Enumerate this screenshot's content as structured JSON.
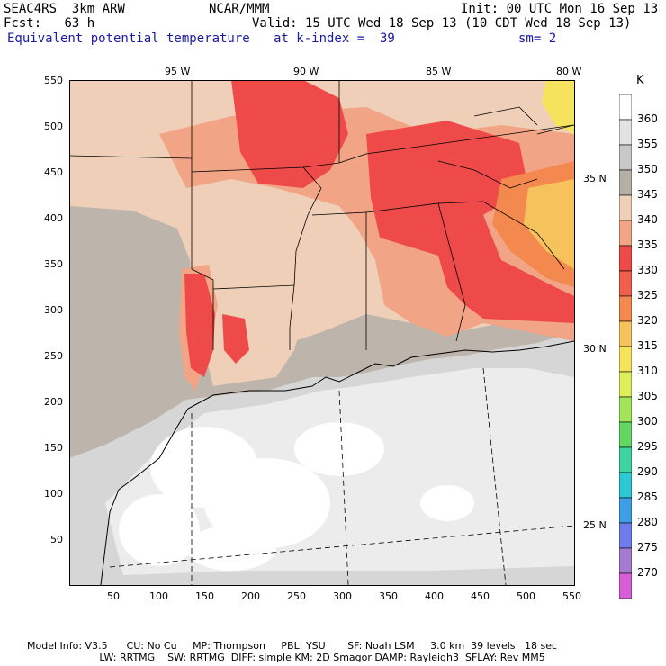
{
  "header": {
    "project": "SEAC4RS",
    "model": "3km ARW",
    "center": "NCAR/MMM",
    "init": "Init: 00 UTC Mon 16 Sep 13",
    "fcst_label": "Fcst:",
    "fcst_value": "63 h",
    "valid": "Valid: 15 UTC Wed 18 Sep 13 (10 CDT Wed 18 Sep 13)",
    "field": "Equivalent potential temperature",
    "level": "at k-index =  39",
    "smooth": "sm= 2"
  },
  "axes": {
    "lon_labels": [
      "95 W",
      "90 W",
      "85 W",
      "80 W"
    ],
    "lat_labels": [
      "35 N",
      "30 N",
      "25 N"
    ],
    "x_ticks": [
      "50",
      "100",
      "150",
      "200",
      "250",
      "300",
      "350",
      "400",
      "450",
      "500",
      "550"
    ],
    "y_ticks": [
      "550",
      "500",
      "450",
      "400",
      "350",
      "300",
      "250",
      "200",
      "150",
      "100",
      "50"
    ]
  },
  "colorbar": {
    "unit": "K",
    "levels": [
      "360",
      "355",
      "350",
      "345",
      "340",
      "335",
      "330",
      "325",
      "320",
      "315",
      "310",
      "305",
      "300",
      "295",
      "290",
      "285",
      "280",
      "275",
      "270"
    ],
    "colors": [
      "#ffffff",
      "#e3e3e3",
      "#c8c8c8",
      "#b4b0a8",
      "#efcfb8",
      "#f2a586",
      "#ef4a4a",
      "#f05f4c",
      "#f3894f",
      "#f6c25c",
      "#f5e35e",
      "#dcef5a",
      "#a4e35a",
      "#62d863",
      "#3fd3a0",
      "#2ec8d2",
      "#3f9ee8",
      "#6d7ce8",
      "#a37bd0",
      "#d85ed8"
    ]
  },
  "footer": {
    "line1": "Model Info: V3.5      CU: No Cu     MP: Thompson     PBL: YSU       SF: Noah LSM     3.0 km  39 levels   18 sec",
    "line2": "                       LW: RRTMG    SW: RRTMG  DIFF: simple KM: 2D Smagor DAMP: Rayleigh3  SFLAY: Rev MM5"
  }
}
